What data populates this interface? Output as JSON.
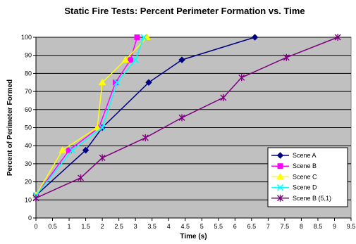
{
  "chart_data": {
    "type": "line",
    "title": "Static Fire Tests: Percent Perimeter Formation vs. Time",
    "xlabel": "Time (s)",
    "ylabel": "Percent of Perimeter Formed",
    "xlim": [
      0,
      9.5
    ],
    "ylim": [
      0,
      100
    ],
    "x_ticks": [
      "0",
      "0.5",
      "1",
      "1.5",
      "2",
      "2.5",
      "3",
      "3.5",
      "4",
      "4.5",
      "5",
      "5.5",
      "6",
      "6.5",
      "7",
      "7.5",
      "8",
      "8.5",
      "9",
      "9.5"
    ],
    "y_ticks": [
      "0",
      "10",
      "20",
      "30",
      "40",
      "50",
      "60",
      "70",
      "80",
      "90",
      "100"
    ],
    "grid": "horizontal",
    "plot_background": "#c0c0c0",
    "legend_position": "bottom-right",
    "series": [
      {
        "name": "Scene A",
        "color": "#000080",
        "marker": "diamond",
        "points": [
          [
            0,
            12.5
          ],
          [
            1.5,
            37.5
          ],
          [
            2,
            50
          ],
          [
            3.4,
            75
          ],
          [
            4.4,
            87.5
          ],
          [
            6.6,
            100
          ]
        ]
      },
      {
        "name": "Scene B",
        "color": "#ff00ff",
        "marker": "square",
        "points": [
          [
            0,
            12.5
          ],
          [
            1,
            37.5
          ],
          [
            1.9,
            50
          ],
          [
            2.4,
            75
          ],
          [
            2.85,
            87.5
          ],
          [
            3.05,
            100
          ]
        ]
      },
      {
        "name": "Scene C",
        "color": "#ffff00",
        "marker": "triangle",
        "points": [
          [
            0,
            12.5
          ],
          [
            0.8,
            37.5
          ],
          [
            1.85,
            50
          ],
          [
            2,
            75
          ],
          [
            2.7,
            87.5
          ],
          [
            3.35,
            100
          ]
        ]
      },
      {
        "name": "Scene D",
        "color": "#00ffff",
        "marker": "x",
        "points": [
          [
            0,
            12.5
          ],
          [
            1.1,
            37.5
          ],
          [
            2,
            50
          ],
          [
            2.45,
            75
          ],
          [
            3,
            87.5
          ],
          [
            3.25,
            100
          ]
        ]
      },
      {
        "name": "Scene B (5,1)",
        "color": "#800080",
        "marker": "star",
        "points": [
          [
            0,
            11
          ],
          [
            1.35,
            22.2
          ],
          [
            2,
            33.3
          ],
          [
            3.3,
            44.4
          ],
          [
            4.4,
            55.5
          ],
          [
            5.65,
            66.6
          ],
          [
            6.2,
            77.7
          ],
          [
            7.55,
            88.8
          ],
          [
            9.1,
            100
          ]
        ]
      }
    ]
  }
}
